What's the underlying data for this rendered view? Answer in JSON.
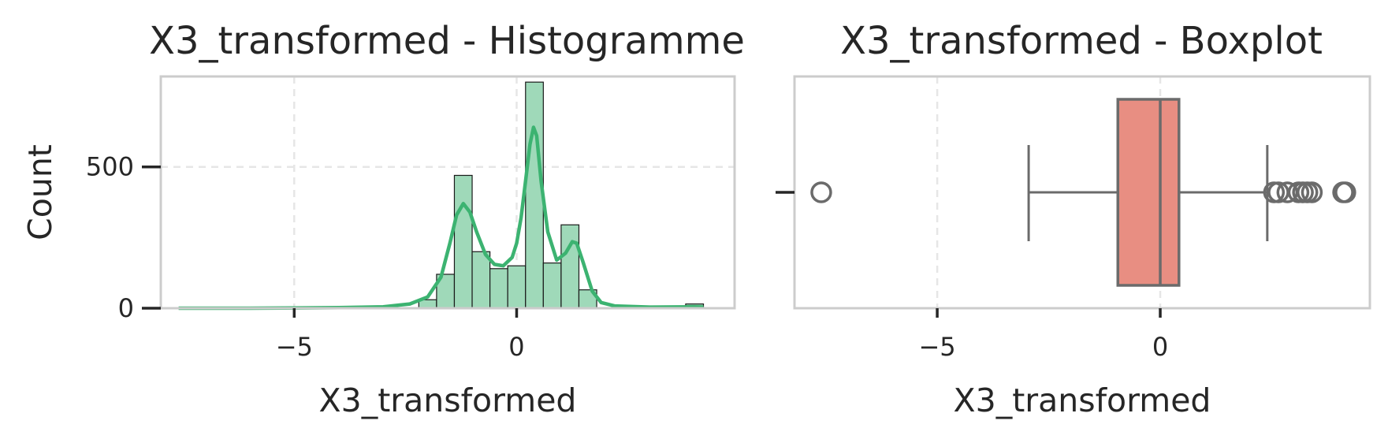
{
  "colors": {
    "hist_fill": "#9fd9b9",
    "kde_line": "#3cb371",
    "box_fill": "#e88e82",
    "box_line": "#6b6b6b",
    "frame": "#cccccc",
    "grid": "#e6e6e6"
  },
  "chart_data": [
    {
      "type": "histogram",
      "title": "X3_transformed - Histogramme",
      "xlabel": "X3_transformed",
      "ylabel": "Count",
      "xlim": [
        -8.0,
        4.9
      ],
      "ylim": [
        0,
        820
      ],
      "xticks": [
        -5,
        0
      ],
      "xtick_labels": [
        "−5",
        "0"
      ],
      "yticks": [
        0,
        500
      ],
      "ytick_labels": [
        "0",
        "500"
      ],
      "grid": true,
      "bins": [
        {
          "x0": -7.6,
          "x1": -7.2,
          "count": 1
        },
        {
          "x0": -2.2,
          "x1": -1.8,
          "count": 30
        },
        {
          "x0": -1.8,
          "x1": -1.4,
          "count": 120
        },
        {
          "x0": -1.4,
          "x1": -1.0,
          "count": 470
        },
        {
          "x0": -1.0,
          "x1": -0.6,
          "count": 200
        },
        {
          "x0": -0.6,
          "x1": -0.2,
          "count": 140
        },
        {
          "x0": -0.2,
          "x1": 0.2,
          "count": 150
        },
        {
          "x0": 0.2,
          "x1": 0.6,
          "count": 800
        },
        {
          "x0": 0.6,
          "x1": 1.0,
          "count": 160
        },
        {
          "x0": 1.0,
          "x1": 1.4,
          "count": 295
        },
        {
          "x0": 1.4,
          "x1": 1.8,
          "count": 65
        },
        {
          "x0": 3.8,
          "x1": 4.2,
          "count": 15
        }
      ],
      "kde": {
        "x": [
          -7.6,
          -6,
          -4,
          -3,
          -2.4,
          -2.0,
          -1.7,
          -1.5,
          -1.35,
          -1.2,
          -1.05,
          -0.9,
          -0.7,
          -0.5,
          -0.3,
          -0.1,
          0.0,
          0.1,
          0.2,
          0.3,
          0.38,
          0.45,
          0.55,
          0.7,
          0.9,
          1.1,
          1.25,
          1.35,
          1.5,
          1.7,
          1.9,
          2.2,
          3.0,
          4.0,
          4.2
        ],
        "y": [
          0,
          0,
          2,
          5,
          15,
          40,
          110,
          230,
          330,
          370,
          340,
          270,
          190,
          155,
          150,
          180,
          230,
          320,
          450,
          580,
          640,
          610,
          450,
          270,
          170,
          195,
          235,
          230,
          160,
          60,
          20,
          8,
          4,
          5,
          4
        ]
      }
    },
    {
      "type": "boxplot",
      "title": "X3_transformed - Boxplot",
      "xlabel": "X3_transformed",
      "xlim": [
        -8.2,
        4.7
      ],
      "xticks": [
        -5,
        0
      ],
      "xtick_labels": [
        "−5",
        "0"
      ],
      "grid": true,
      "whislo": -2.95,
      "q1": -0.95,
      "median": 0.0,
      "q3": 0.42,
      "whishi": 2.4,
      "outliers": [
        -7.6,
        2.55,
        2.65,
        2.85,
        3.1,
        3.2,
        3.3,
        3.4,
        4.1,
        4.15
      ]
    }
  ]
}
